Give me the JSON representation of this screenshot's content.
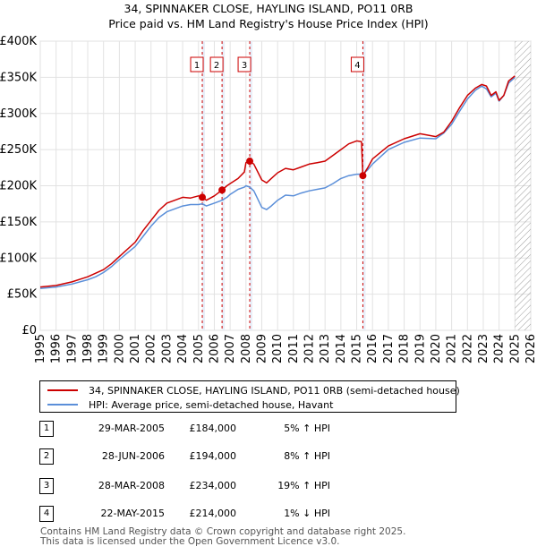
{
  "chart_data": {
    "type": "line",
    "title": "34, SPINNAKER CLOSE, HAYLING ISLAND, PO11 0RB",
    "subtitle": "Price paid vs. HM Land Registry's House Price Index (HPI)",
    "xlabel": "",
    "ylabel": "",
    "xlim": [
      1995,
      2026
    ],
    "ylim": [
      0,
      400000
    ],
    "x_ticks": [
      "1995",
      "1996",
      "1997",
      "1998",
      "1999",
      "2000",
      "2001",
      "2002",
      "2003",
      "2004",
      "2005",
      "2006",
      "2007",
      "2008",
      "2009",
      "2010",
      "2011",
      "2012",
      "2013",
      "2014",
      "2015",
      "2016",
      "2017",
      "2018",
      "2019",
      "2020",
      "2021",
      "2022",
      "2023",
      "2024",
      "2025",
      "2026"
    ],
    "y_ticks": [
      {
        "value": 0,
        "label": "£0"
      },
      {
        "value": 50000,
        "label": "£50K"
      },
      {
        "value": 100000,
        "label": "£100K"
      },
      {
        "value": 150000,
        "label": "£150K"
      },
      {
        "value": 200000,
        "label": "£200K"
      },
      {
        "value": 250000,
        "label": "£250K"
      },
      {
        "value": 300000,
        "label": "£300K"
      },
      {
        "value": 350000,
        "label": "£350K"
      },
      {
        "value": 400000,
        "label": "£400K"
      }
    ],
    "series": [
      {
        "name": "34, SPINNAKER CLOSE, HAYLING ISLAND, PO11 0RB (semi-detached house)",
        "color": "#cc0000",
        "x": [
          1995.0,
          1996.0,
          1997.0,
          1998.0,
          1998.5,
          1999.0,
          1999.5,
          2000.0,
          2001.0,
          2001.5,
          2002.0,
          2002.5,
          2003.0,
          2003.5,
          2004.0,
          2004.5,
          2005.0,
          2005.24,
          2005.5,
          2006.0,
          2006.49,
          2006.8,
          2007.0,
          2007.5,
          2007.9,
          2008.0,
          2008.24,
          2008.5,
          2009.0,
          2009.3,
          2009.6,
          2010.0,
          2010.5,
          2011.0,
          2011.5,
          2012.0,
          2012.5,
          2013.0,
          2013.5,
          2014.0,
          2014.5,
          2015.0,
          2015.3,
          2015.39,
          2015.7,
          2016.0,
          2017.0,
          2018.0,
          2019.0,
          2020.0,
          2020.5,
          2021.0,
          2021.5,
          2022.0,
          2022.5,
          2022.9,
          2023.2,
          2023.5,
          2023.8,
          2024.0,
          2024.3,
          2024.6,
          2025.0
        ],
        "values": [
          60000,
          62000,
          67000,
          74000,
          79000,
          84000,
          92000,
          102000,
          122000,
          138000,
          152000,
          166000,
          176000,
          180000,
          184000,
          183000,
          186000,
          184000,
          180000,
          186000,
          194000,
          200000,
          203000,
          210000,
          219000,
          232000,
          234000,
          230000,
          208000,
          204000,
          210000,
          218000,
          224000,
          222000,
          226000,
          230000,
          232000,
          234000,
          242000,
          250000,
          258000,
          262000,
          261000,
          214000,
          225000,
          237000,
          255000,
          265000,
          272000,
          268000,
          274000,
          289000,
          308000,
          325000,
          335000,
          340000,
          338000,
          325000,
          330000,
          318000,
          325000,
          345000,
          352000
        ]
      },
      {
        "name": "HPI: Average price, semi-detached house, Havant",
        "color": "#5b8fd9",
        "x": [
          1995.0,
          1996.0,
          1997.0,
          1998.0,
          1998.5,
          1999.0,
          1999.5,
          2000.0,
          2001.0,
          2001.5,
          2002.0,
          2002.5,
          2003.0,
          2003.5,
          2004.0,
          2004.5,
          2005.0,
          2005.24,
          2005.5,
          2006.0,
          2006.49,
          2006.8,
          2007.0,
          2007.5,
          2007.9,
          2008.0,
          2008.24,
          2008.5,
          2009.0,
          2009.3,
          2009.6,
          2010.0,
          2010.5,
          2011.0,
          2011.5,
          2012.0,
          2012.5,
          2013.0,
          2013.5,
          2014.0,
          2014.5,
          2015.0,
          2015.3,
          2015.39,
          2015.7,
          2016.0,
          2017.0,
          2018.0,
          2019.0,
          2020.0,
          2020.5,
          2021.0,
          2021.5,
          2022.0,
          2022.5,
          2022.9,
          2023.2,
          2023.5,
          2023.8,
          2024.0,
          2024.3,
          2024.6,
          2025.0
        ],
        "values": [
          58000,
          60000,
          64000,
          70000,
          74000,
          80000,
          88000,
          98000,
          116000,
          130000,
          144000,
          156000,
          164000,
          168000,
          172000,
          174000,
          174000,
          175000,
          172000,
          176000,
          180000,
          184000,
          188000,
          195000,
          198000,
          200000,
          198000,
          193000,
          170000,
          167000,
          172000,
          180000,
          187000,
          186000,
          190000,
          193000,
          195000,
          197000,
          203000,
          210000,
          214000,
          216000,
          216000,
          216000,
          222000,
          230000,
          250000,
          260000,
          266000,
          265000,
          273000,
          285000,
          303000,
          320000,
          332000,
          338000,
          334000,
          323000,
          328000,
          317000,
          325000,
          342000,
          350000
        ]
      }
    ],
    "sales": [
      {
        "num": "1",
        "x": 2005.24,
        "value": 184000
      },
      {
        "num": "2",
        "x": 2006.49,
        "value": 194000
      },
      {
        "num": "3",
        "x": 2008.24,
        "value": 234000
      },
      {
        "num": "4",
        "x": 2015.39,
        "value": 214000
      }
    ],
    "hatch_from": 2025.0
  },
  "legend": {
    "items": [
      {
        "label": "34, SPINNAKER CLOSE, HAYLING ISLAND, PO11 0RB (semi-detached house)",
        "color": "#cc0000"
      },
      {
        "label": "HPI: Average price, semi-detached house, Havant",
        "color": "#5b8fd9"
      }
    ]
  },
  "table": {
    "rows": [
      {
        "num": "1",
        "date": "29-MAR-2005",
        "price": "£184,000",
        "hpi": "5% ↑ HPI"
      },
      {
        "num": "2",
        "date": "28-JUN-2006",
        "price": "£194,000",
        "hpi": "8% ↑ HPI"
      },
      {
        "num": "3",
        "date": "28-MAR-2008",
        "price": "£234,000",
        "hpi": "19% ↑ HPI"
      },
      {
        "num": "4",
        "date": "22-MAY-2015",
        "price": "£214,000",
        "hpi": "1% ↓ HPI"
      }
    ]
  },
  "footer": {
    "line1": "Contains HM Land Registry data © Crown copyright and database right 2025.",
    "line2": "This data is licensed under the Open Government Licence v3.0."
  }
}
